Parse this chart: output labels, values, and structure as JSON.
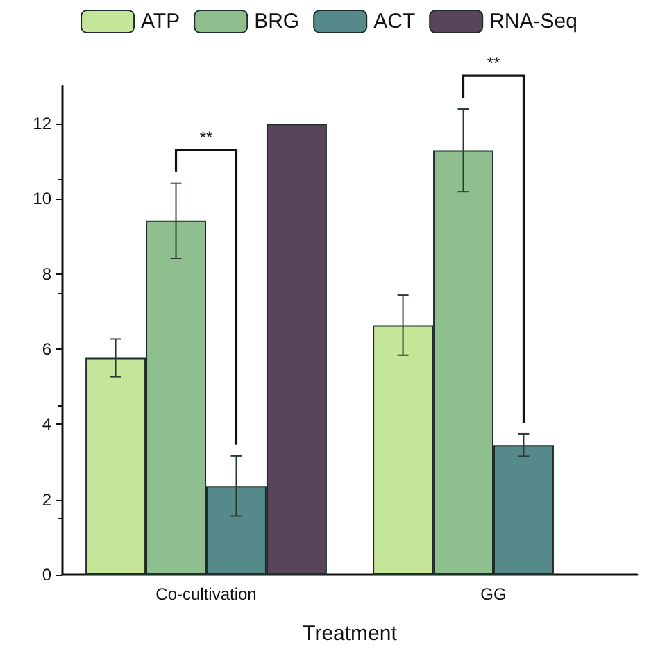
{
  "chart_data": {
    "type": "bar",
    "xlabel": "Treatment",
    "categories": [
      "Co-cultivation",
      "GG"
    ],
    "series": [
      {
        "name": "ATP",
        "color": "#c5e698",
        "values": [
          5.77,
          6.64
        ],
        "errors": [
          0.5,
          0.8
        ]
      },
      {
        "name": "BRG",
        "color": "#8fbf8f",
        "values": [
          9.42,
          11.29
        ],
        "errors": [
          1.0,
          1.1
        ]
      },
      {
        "name": "ACT",
        "color": "#56898a",
        "values": [
          2.36,
          3.45
        ],
        "errors": [
          0.8,
          0.3
        ]
      },
      {
        "name": "RNA-Seq",
        "color": "#58455c",
        "values": [
          12.0,
          null
        ]
      }
    ],
    "ylim": [
      0,
      13
    ],
    "yticks": [
      0,
      2,
      4,
      6,
      8,
      10,
      12
    ],
    "grid": false,
    "legend": "top",
    "annotations": [
      "**",
      "**"
    ]
  }
}
